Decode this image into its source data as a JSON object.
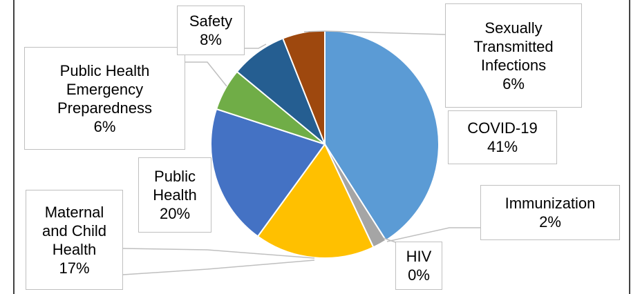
{
  "chart_data": {
    "type": "pie",
    "categories": [
      "COVID-19",
      "Immunization",
      "HIV",
      "Maternal and Child Health",
      "Public Health",
      "Public Health Emergency Preparedness",
      "Safety",
      "Sexually Transmitted Infections"
    ],
    "values": [
      41,
      2,
      0,
      17,
      20,
      6,
      8,
      6
    ],
    "value_labels": [
      "41%",
      "2%",
      "0%",
      "17%",
      "20%",
      "6%",
      "8%",
      "6%"
    ],
    "colors": [
      "#5b9bd5",
      "#a5a5a5",
      "#ed7d31",
      "#ffc000",
      "#4472c4",
      "#70ad47",
      "#255e91",
      "#9e480e"
    ]
  }
}
